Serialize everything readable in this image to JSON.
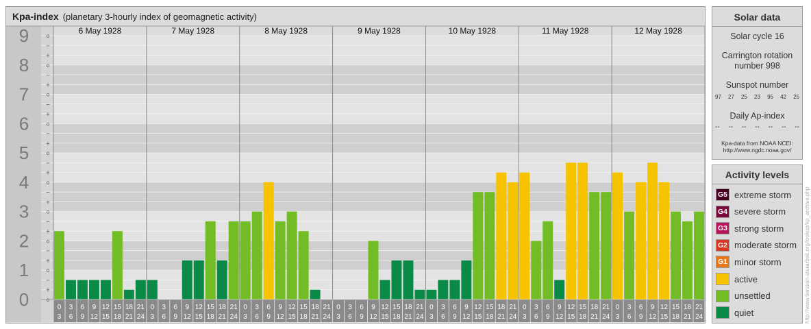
{
  "header": {
    "title": "Kpa-index",
    "subtitle": "(planetary 3-hourly index of geomagnetic activity)"
  },
  "chart_data": {
    "type": "bar",
    "ylim": [
      0,
      9
    ],
    "y_ticks": [
      "0",
      "1",
      "2",
      "3",
      "4",
      "5",
      "6",
      "7",
      "8",
      "9"
    ],
    "y_minor_marks": [
      "o",
      "+",
      "−"
    ],
    "days": [
      "6 May 1928",
      "7 May 1928",
      "8 May 1928",
      "9 May 1928",
      "10 May 1928",
      "11 May 1928",
      "12 May 1928"
    ],
    "interval_labels": [
      [
        "0",
        "3"
      ],
      [
        "3",
        "6"
      ],
      [
        "6",
        "9"
      ],
      [
        "9",
        "12"
      ],
      [
        "12",
        "15"
      ],
      [
        "15",
        "18"
      ],
      [
        "18",
        "21"
      ],
      [
        "21",
        "24"
      ]
    ],
    "values": [
      2.333,
      0.667,
      0.667,
      0.667,
      0.667,
      2.333,
      0.333,
      0.667,
      0.667,
      0,
      0,
      1.333,
      1.333,
      2.667,
      1.333,
      2.667,
      2.667,
      3,
      4,
      2.667,
      3,
      2.333,
      0.333,
      0,
      0,
      0,
      0,
      2,
      0.667,
      1.333,
      1.333,
      0.333,
      0.333,
      0.667,
      0.667,
      1.333,
      3.667,
      3.667,
      4.333,
      4,
      4.333,
      2,
      2.667,
      0.667,
      4.667,
      4.667,
      3.667,
      3.667,
      4.333,
      3,
      4,
      4.667,
      4,
      3,
      2.667,
      3
    ],
    "levels": [
      {
        "code": "G5",
        "label": "extreme storm",
        "color": "#4a0020"
      },
      {
        "code": "G4",
        "label": "severe storm",
        "color": "#7a0a3c"
      },
      {
        "code": "G3",
        "label": "strong storm",
        "color": "#b8165a"
      },
      {
        "code": "G2",
        "label": "moderate storm",
        "color": "#d9351f"
      },
      {
        "code": "G1",
        "label": "minor storm",
        "color": "#e8771a"
      },
      {
        "code": "",
        "label": "active",
        "color": "#f7c300"
      },
      {
        "code": "",
        "label": "unsettled",
        "color": "#72bd25"
      },
      {
        "code": "",
        "label": "quiet",
        "color": "#0a8a47"
      }
    ]
  },
  "solar": {
    "title": "Solar data",
    "cycle": "Solar cycle 16",
    "carrington_line1": "Carrington rotation",
    "carrington_line2": "number 998",
    "sunspot_title": "Sunspot number",
    "sunspot_values": [
      "97",
      "27",
      "25",
      "23",
      "95",
      "42",
      "25"
    ],
    "ap_title": "Daily Ap-index",
    "ap_values": [
      "--",
      "--",
      "--",
      "--",
      "--",
      "--",
      "--"
    ],
    "source_line1": "Kpa-data from NOAA NCEI:",
    "source_line2": "http://www.ngdc.noaa.gov/"
  },
  "activity": {
    "title": "Activity levels"
  },
  "credit": "http://www.tierstein-sterarbeit.org/lookup/kp_archive.php"
}
